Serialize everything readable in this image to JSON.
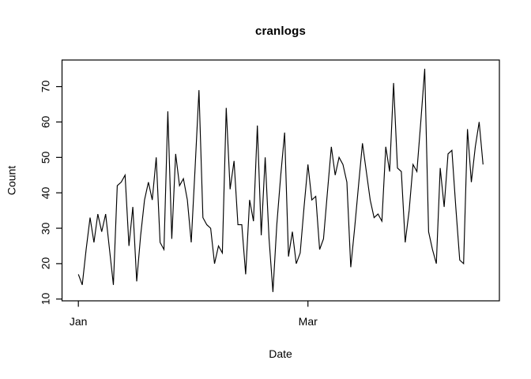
{
  "chart_data": {
    "type": "line",
    "title": "cranlogs",
    "xlabel": "Date",
    "ylabel": "Count",
    "line_color": "#000000",
    "background": "#ffffff",
    "grid": false,
    "legend": null,
    "x_unit": "day",
    "x_start_day": 0,
    "xlim_days": [
      -4.2,
      108.2
    ],
    "ylim": [
      9.5,
      77.5
    ],
    "x_ticks": [
      {
        "label": "Jan",
        "day": 0
      },
      {
        "label": "Mar",
        "day": 59
      }
    ],
    "y_ticks": [
      10,
      20,
      30,
      40,
      50,
      60,
      70
    ],
    "values": [
      17,
      14,
      24,
      33,
      26,
      34,
      29,
      34,
      24,
      14,
      42,
      43,
      45,
      25,
      36,
      15,
      28,
      38,
      43,
      38,
      50,
      26,
      24,
      63,
      27,
      51,
      42,
      44,
      38,
      26,
      47,
      69,
      33,
      31,
      30,
      20,
      25,
      23,
      64,
      41,
      49,
      31,
      31,
      17,
      38,
      32,
      59,
      28,
      50,
      27,
      12,
      31,
      45,
      57,
      22,
      29,
      20,
      23,
      36,
      48,
      38,
      39,
      24,
      27,
      40,
      53,
      45,
      50,
      48,
      43,
      19,
      30,
      42,
      54,
      46,
      38,
      33,
      34,
      32,
      53,
      46,
      71,
      47,
      46,
      26,
      35,
      48,
      46,
      60,
      75,
      29,
      24,
      20,
      47,
      36,
      51,
      52,
      36,
      21,
      20,
      58,
      43,
      53,
      60,
      48
    ]
  }
}
